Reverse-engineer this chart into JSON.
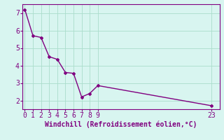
{
  "x": [
    0,
    1,
    2,
    3,
    4,
    5,
    6,
    7,
    8,
    9,
    23
  ],
  "y": [
    7.2,
    5.7,
    5.6,
    4.5,
    4.35,
    3.6,
    3.55,
    2.2,
    2.4,
    2.85,
    1.7
  ],
  "line_color": "#800080",
  "marker": "D",
  "marker_size": 2,
  "bg_color": "#d8f5f0",
  "grid_color": "#aaddcc",
  "xlabel": "Windchill (Refroidissement éolien,°C)",
  "xlabel_color": "#800080",
  "tick_color": "#800080",
  "xlim": [
    -0.3,
    24.0
  ],
  "ylim": [
    1.5,
    7.5
  ],
  "xticks": [
    0,
    1,
    2,
    3,
    4,
    5,
    6,
    7,
    8,
    9,
    23
  ],
  "yticks": [
    2,
    3,
    4,
    5,
    6,
    7
  ],
  "xlabel_fontsize": 7,
  "tick_fontsize": 7,
  "line_width": 1.0
}
